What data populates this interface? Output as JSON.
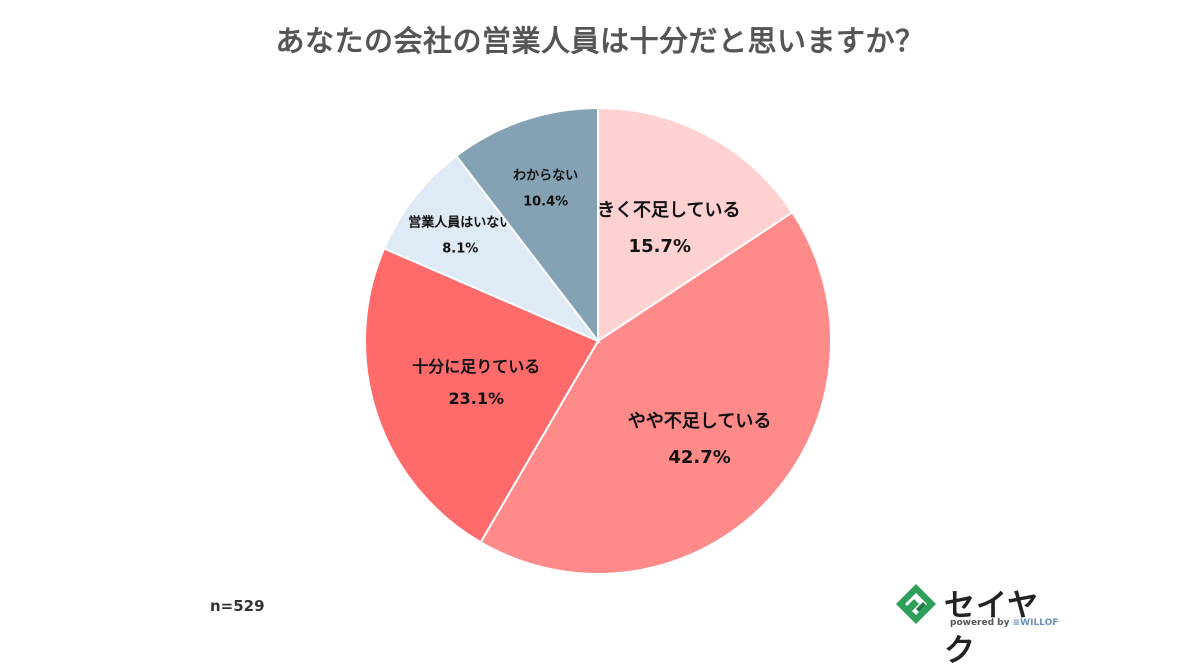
{
  "title": "あなたの会社の営業人員は十分だと思いますか？",
  "footnote": "n=529",
  "logo": {
    "name": "セイヤク",
    "powered_by": "powered by",
    "brand": "≡WILLOF",
    "colors": {
      "green": "#2e9e5b",
      "dark": "#222222"
    }
  },
  "chart_data": {
    "type": "pie",
    "title": "あなたの会社の営業人員は十分だと思いますか？",
    "start": "12 o'clock",
    "direction": "clockwise",
    "slices": [
      {
        "label": "大きく不足している",
        "value": 15.7,
        "value_label": "15.7%",
        "color": "#ffd1d1"
      },
      {
        "label": "やや不足している",
        "value": 42.7,
        "value_label": "42.7%",
        "color": "#ff8a8a"
      },
      {
        "label": "十分に足りている",
        "value": 23.1,
        "value_label": "23.1%",
        "color": "#ff6b6b"
      },
      {
        "label": "営業人員はいない",
        "value": 8.1,
        "value_label": "8.1%",
        "color": "#deeaf6"
      },
      {
        "label": "わからない",
        "value": 10.4,
        "value_label": "10.4%",
        "color": "#84a2b4"
      }
    ],
    "annotation": "n=529"
  }
}
